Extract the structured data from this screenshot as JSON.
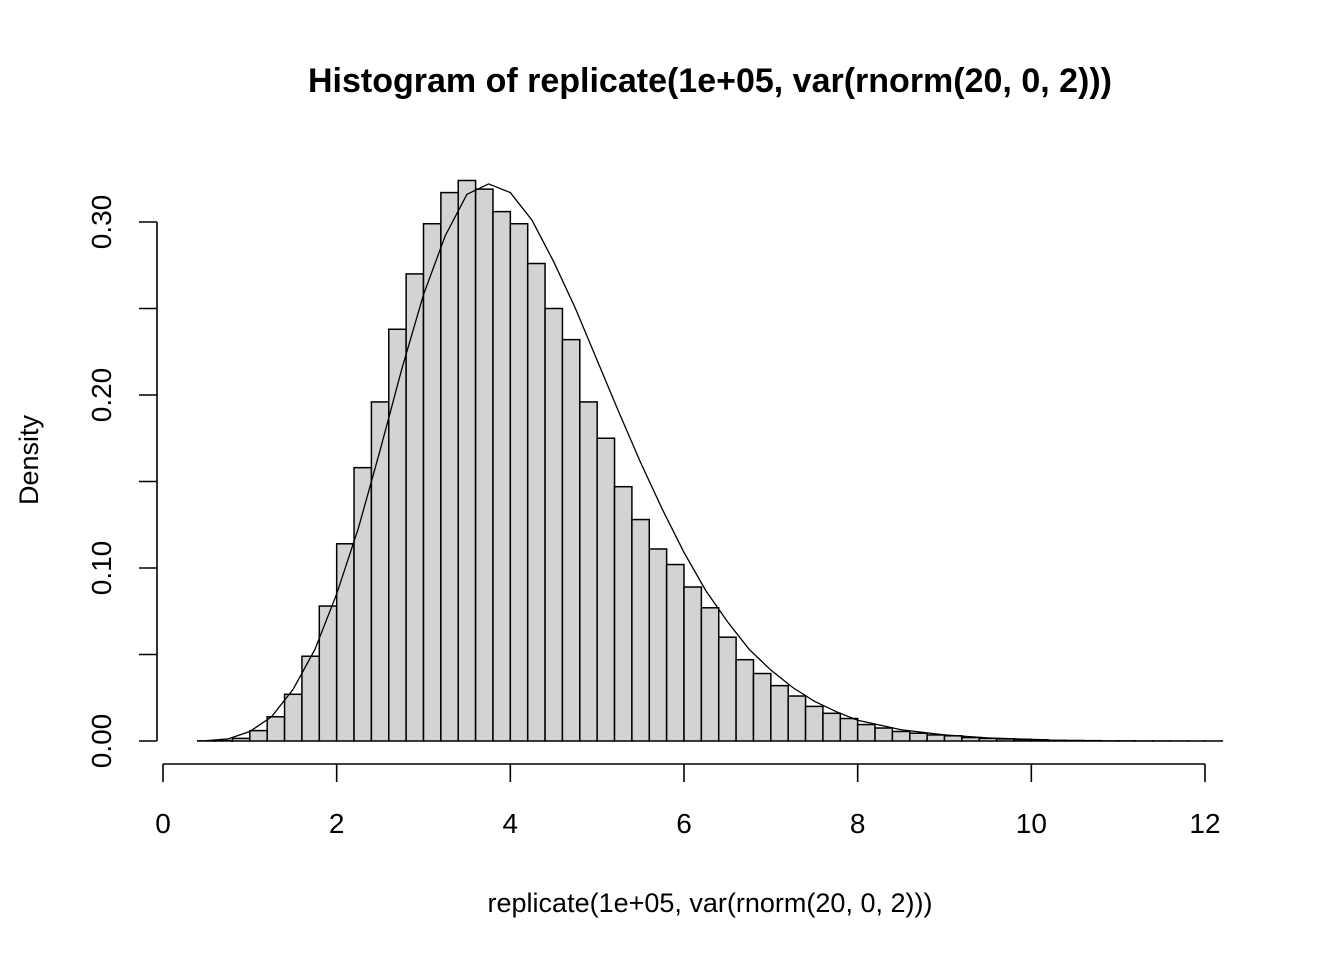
{
  "chart_data": {
    "type": "bar",
    "title": "Histogram of replicate(1e+05, var(rnorm(20, 0, 2)))",
    "xlabel": "replicate(1e+05, var(rnorm(20, 0, 2)))",
    "ylabel": "Density",
    "xlim": [
      0,
      12
    ],
    "ylim": [
      0,
      0.3
    ],
    "x_ticks": [
      0,
      2,
      4,
      6,
      8,
      10,
      12
    ],
    "x_tick_labels": [
      "0",
      "2",
      "4",
      "6",
      "8",
      "10",
      "12"
    ],
    "y_ticks": [
      0,
      0.05,
      0.1,
      0.15,
      0.2,
      0.25,
      0.3
    ],
    "y_tick_labels": [
      "0.00",
      "",
      "0.10",
      "",
      "0.20",
      "",
      "0.30"
    ],
    "bin_width": 0.2,
    "bins_start": [
      0.4,
      0.6,
      0.8,
      1.0,
      1.2,
      1.4,
      1.6,
      1.8,
      2.0,
      2.2,
      2.4,
      2.6,
      2.8,
      3.0,
      3.2,
      3.4,
      3.6,
      3.8,
      4.0,
      4.2,
      4.4,
      4.6,
      4.8,
      5.0,
      5.2,
      5.4,
      5.6,
      5.8,
      6.0,
      6.2,
      6.4,
      6.6,
      6.8,
      7.0,
      7.2,
      7.4,
      7.6,
      7.8,
      8.0,
      8.2,
      8.4,
      8.6,
      8.8,
      9.0,
      9.2,
      9.4,
      9.6,
      9.8,
      10.0,
      10.2,
      10.4,
      10.6,
      10.8,
      11.0,
      11.2,
      11.4,
      11.6,
      11.8,
      12.0
    ],
    "values": [
      0.0001,
      0.0003,
      0.0015,
      0.006,
      0.014,
      0.027,
      0.049,
      0.078,
      0.114,
      0.158,
      0.196,
      0.238,
      0.27,
      0.299,
      0.317,
      0.324,
      0.319,
      0.306,
      0.299,
      0.276,
      0.25,
      0.232,
      0.196,
      0.175,
      0.147,
      0.128,
      0.111,
      0.102,
      0.089,
      0.077,
      0.06,
      0.047,
      0.039,
      0.032,
      0.026,
      0.02,
      0.016,
      0.013,
      0.0095,
      0.0075,
      0.0055,
      0.0045,
      0.0035,
      0.003,
      0.002,
      0.0015,
      0.0012,
      0.0009,
      0.0006,
      0.0004,
      0.0003,
      0.0002,
      0.0001,
      0.0001,
      5e-05,
      5e-05,
      3e-05,
      2e-05,
      1e-05
    ],
    "density_curve": {
      "x": [
        0.5,
        0.75,
        1.0,
        1.25,
        1.5,
        1.75,
        2.0,
        2.25,
        2.5,
        2.75,
        3.0,
        3.25,
        3.5,
        3.75,
        4.0,
        4.25,
        4.5,
        4.75,
        5.0,
        5.25,
        5.5,
        5.75,
        6.0,
        6.25,
        6.5,
        6.75,
        7.0,
        7.25,
        7.5,
        7.75,
        8.0,
        8.5,
        9.0,
        9.5,
        10.0,
        10.2
      ],
      "y": [
        0.0002,
        0.0012,
        0.0055,
        0.014,
        0.03,
        0.053,
        0.085,
        0.123,
        0.168,
        0.215,
        0.258,
        0.292,
        0.316,
        0.322,
        0.317,
        0.301,
        0.277,
        0.25,
        0.22,
        0.19,
        0.161,
        0.134,
        0.109,
        0.087,
        0.069,
        0.053,
        0.041,
        0.031,
        0.023,
        0.017,
        0.012,
        0.0065,
        0.0035,
        0.0018,
        0.0009,
        0.0007
      ]
    },
    "grid": false,
    "legend": "none"
  }
}
